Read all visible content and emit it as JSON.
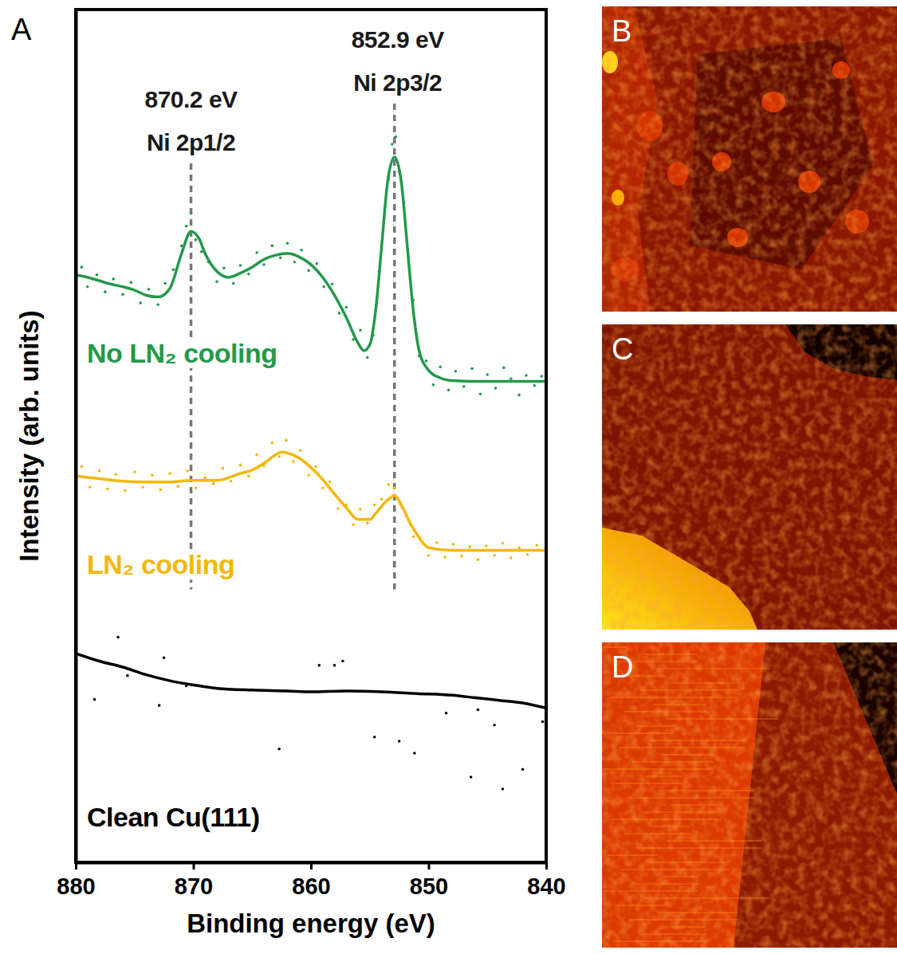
{
  "chart_data": {
    "type": "line",
    "x_label": "Binding energy (eV)",
    "y_label": "Intensity (arb. units)",
    "xlim": [
      880,
      840
    ],
    "xticks": [
      880,
      870,
      860,
      850,
      840
    ],
    "ylim": [
      0,
      100
    ],
    "yticks": [],
    "tick_labels": "x",
    "grid": false,
    "annotations": [
      {
        "x": 870.2,
        "lines": [
          "870.2 eV",
          "Ni 2p1/2"
        ]
      },
      {
        "x": 852.9,
        "lines": [
          "852.9 eV",
          "Ni 2p3/2"
        ]
      }
    ],
    "series": [
      {
        "name": "No LN₂ cooling",
        "type": "line",
        "line_style": "solid",
        "color": "#23994a",
        "x": [
          880,
          879,
          878,
          877,
          876,
          875,
          874,
          873,
          872,
          871,
          870.2,
          869.5,
          869,
          868,
          867,
          866,
          865,
          864,
          863,
          862,
          861,
          860,
          859,
          858,
          857,
          856,
          855.5,
          855,
          854.5,
          854,
          853.5,
          852.9,
          852.3,
          851.8,
          851.3,
          850.8,
          850,
          849,
          848,
          846,
          844,
          842,
          840
        ],
        "values": [
          68.9,
          68.6,
          68.2,
          67.8,
          67.5,
          67.1,
          66.5,
          66.3,
          67.3,
          71.4,
          74.0,
          73.1,
          71.4,
          69.3,
          68.6,
          69.1,
          69.8,
          70.7,
          71.2,
          71.4,
          71.0,
          70.1,
          68.6,
          66.5,
          63.9,
          60.9,
          60.0,
          60.7,
          64.7,
          72.1,
          79.6,
          82.7,
          79.6,
          72.1,
          64.7,
          60.0,
          57.7,
          56.8,
          56.5,
          56.4,
          56.4,
          56.4,
          56.4
        ]
      },
      {
        "type": "scatter",
        "marker": "dot",
        "color": "#23994a",
        "x": [
          879.5,
          879,
          878.2,
          877.5,
          876.8,
          876,
          875.3,
          874.5,
          873.8,
          873,
          872.4,
          871.7,
          871,
          870.6,
          870.2,
          869.8,
          869.3,
          868.7,
          868,
          867.4,
          866.6,
          866,
          865.3,
          864.6,
          864,
          863.3,
          862.6,
          862,
          861.4,
          860.8,
          860.2,
          859.5,
          858.9,
          858.2,
          857.6,
          857,
          856.4,
          855.8,
          855.2,
          854.7,
          854.2,
          853.8,
          853.4,
          853.1,
          852.8,
          852.5,
          852.1,
          851.7,
          851.3,
          850.8,
          850.2,
          849.6,
          849,
          848.3,
          847.7,
          847,
          846.3,
          845.6,
          845,
          844.3,
          843.6,
          843,
          842.3,
          841.7,
          841,
          840.4
        ],
        "values": [
          69.8,
          67.5,
          68.9,
          66.9,
          68.4,
          66.6,
          68.0,
          65.6,
          67.2,
          65.4,
          67.9,
          69.5,
          72.3,
          74.6,
          76.1,
          73.0,
          71.6,
          70.4,
          68.1,
          69.7,
          67.9,
          70.0,
          69.0,
          71.5,
          70.1,
          72.3,
          70.9,
          72.6,
          70.4,
          71.8,
          69.4,
          70.2,
          67.5,
          67.8,
          64.4,
          65.1,
          61.3,
          62.4,
          59.2,
          61.8,
          69.3,
          75.6,
          80.1,
          84.2,
          85.1,
          81.0,
          77.3,
          70.5,
          65.9,
          59.4,
          58.8,
          56.0,
          58.1,
          55.4,
          57.6,
          55.8,
          57.9,
          54.9,
          57.2,
          55.6,
          58.0,
          56.7,
          54.8,
          57.1,
          55.9,
          57.0
        ]
      },
      {
        "name": "LN₂ cooling",
        "type": "line",
        "line_style": "solid",
        "color": "#f4b70a",
        "x": [
          880,
          878,
          876,
          874,
          872,
          870.2,
          868,
          866,
          865,
          864,
          863,
          862.5,
          862,
          861,
          860,
          859,
          858,
          857,
          856,
          855,
          854.5,
          853.7,
          852.9,
          852.2,
          851.5,
          851,
          850.5,
          850,
          848,
          845,
          840
        ],
        "values": [
          45.3,
          45.0,
          44.7,
          44.6,
          44.6,
          44.8,
          44.8,
          45.6,
          46.0,
          46.8,
          47.8,
          48.1,
          48.0,
          47.4,
          46.3,
          44.9,
          43.2,
          41.6,
          40.2,
          40.2,
          40.9,
          42.2,
          43.0,
          41.6,
          39.6,
          38.5,
          37.5,
          36.9,
          36.6,
          36.6,
          36.6
        ]
      },
      {
        "type": "scatter",
        "marker": "dot",
        "color": "#f4b70a",
        "x": [
          879.5,
          878.8,
          878,
          877.3,
          876.6,
          875.8,
          875,
          874.3,
          873.5,
          872.8,
          872,
          871.3,
          870.5,
          869.8,
          869,
          868.3,
          867.5,
          866.8,
          866,
          865.3,
          864.6,
          864,
          863.3,
          862.7,
          862.1,
          861.5,
          860.9,
          860.2,
          859.6,
          859,
          858.4,
          857.7,
          857,
          856.4,
          855.8,
          855.2,
          854.6,
          854,
          853.4,
          852.9,
          852.4,
          851.9,
          851.3,
          850.7,
          850,
          849.3,
          848.6,
          847.9,
          847.2,
          846.5,
          845.8,
          845.1,
          844.4,
          843.7,
          843,
          842.3,
          841.6,
          840.8
        ],
        "values": [
          46.4,
          44.0,
          45.9,
          43.8,
          45.5,
          43.6,
          45.8,
          44.0,
          45.4,
          43.7,
          45.6,
          44.1,
          45.9,
          43.9,
          45.1,
          44.4,
          46.2,
          44.7,
          46.6,
          45.3,
          47.8,
          46.5,
          49.2,
          47.6,
          49.5,
          47.0,
          48.3,
          45.4,
          46.4,
          43.9,
          44.6,
          41.5,
          41.9,
          39.6,
          41.4,
          39.8,
          41.9,
          42.6,
          44.3,
          43.9,
          42.0,
          40.6,
          38.2,
          38.0,
          36.0,
          37.5,
          35.8,
          37.3,
          35.9,
          37.0,
          35.5,
          37.1,
          36.0,
          37.4,
          35.7,
          36.9,
          36.1,
          37.2
        ]
      },
      {
        "name": "Clean Cu(111)",
        "type": "line",
        "line_style": "solid",
        "color": "#000000",
        "x": [
          880,
          878,
          876,
          874,
          872,
          870,
          868,
          865,
          862,
          860,
          857,
          854,
          851,
          848,
          846,
          844,
          842,
          840
        ],
        "values": [
          24.5,
          23.6,
          22.9,
          22.0,
          21.3,
          20.8,
          20.4,
          20.2,
          20.1,
          20.0,
          20.1,
          20.0,
          19.8,
          19.6,
          19.3,
          19.0,
          18.7,
          18.1
        ]
      },
      {
        "type": "scatter",
        "marker": "dot",
        "color": "#000000",
        "x": [
          878.4,
          876.4,
          875.6,
          872.9,
          872.5,
          870.6,
          869.5,
          862.7,
          859.3,
          858.0,
          857.3,
          854.6,
          852.5,
          851.2,
          848.5,
          846.4,
          845.8,
          844.4,
          843.7,
          842.0,
          840.3
        ],
        "values": [
          19.1,
          26.4,
          21.9,
          18.4,
          24.0,
          20.7,
          20.7,
          13.3,
          23.1,
          23.1,
          23.6,
          14.7,
          14.2,
          12.8,
          17.5,
          10.0,
          17.9,
          16.1,
          8.6,
          10.9,
          16.5
        ]
      }
    ]
  },
  "panel_labels": [
    "A",
    "B",
    "C",
    "D"
  ]
}
